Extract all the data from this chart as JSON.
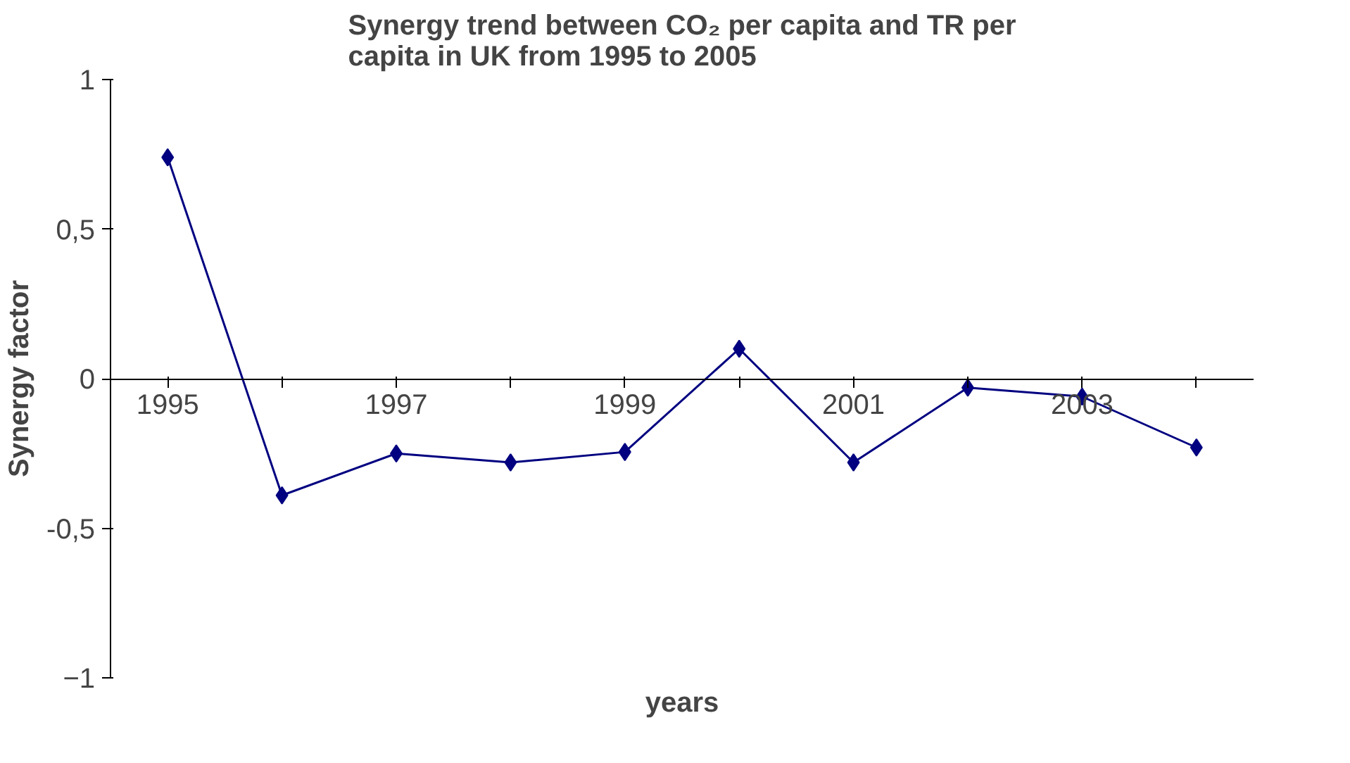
{
  "chart_data": {
    "type": "line",
    "title": "Synergy trend between CO₂ per capita and TR per capita in UK from 1995 to 2005",
    "xlabel": "years",
    "ylabel": "Synergy factor",
    "categories": [
      "1995",
      null,
      "1997",
      null,
      "1999",
      null,
      "2001",
      null,
      "2003",
      null
    ],
    "series": [
      {
        "color": "#000080",
        "values": [
          0.74,
          -0.39,
          -0.25,
          -0.28,
          -0.245,
          0.1,
          -0.28,
          -0.03,
          -0.06,
          -0.23
        ]
      }
    ],
    "ylim": [
      -1,
      1
    ],
    "yticks": [
      1,
      {
        "value": 0.5,
        "label": "0,5"
      },
      0,
      {
        "value": -0.5,
        "label": "-0,5"
      },
      -1
    ],
    "grid": false,
    "marker": "diamond",
    "line_style": "solid"
  }
}
